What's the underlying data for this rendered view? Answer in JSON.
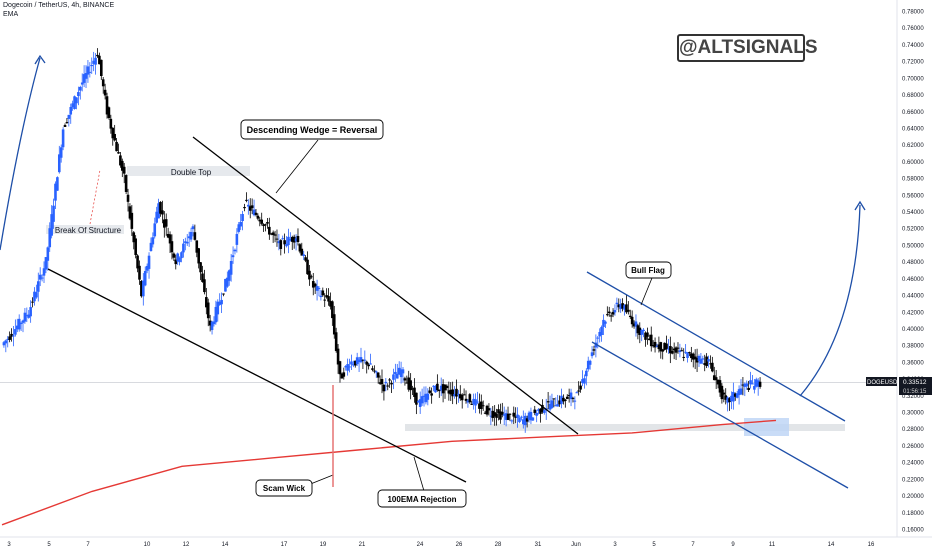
{
  "header": {
    "title": "Dogecoin / TetherUS, 4h, BINANCE",
    "indicator": "EMA"
  },
  "brand": "@ALTSIGNALS",
  "annotations": {
    "descending_wedge": "Descending Wedge = Reversal",
    "double_top": "Double Top",
    "break_of_structure": "Break Of Structure",
    "bull_flag": "Bull Flag",
    "scam_wick": "Scam Wick",
    "ema_rejection": "100EMA Rejection"
  },
  "price_tag": {
    "symbol": "DOGEUSDT",
    "price": "0.33512",
    "countdown": "01:56:15"
  },
  "colors": {
    "bull": "#2962ff",
    "bear": "#000000",
    "ema": "#e53935",
    "channel": "#1e4fa8",
    "wedge": "#000000"
  },
  "chart_data": {
    "type": "candlestick",
    "symbol": "DOGEUSDT",
    "exchange": "BINANCE",
    "timeframe": "4h",
    "y_axis": {
      "range": [
        0.15,
        0.79
      ],
      "ticks": [
        "0.78000",
        "0.76000",
        "0.74000",
        "0.72000",
        "0.70000",
        "0.68000",
        "0.66000",
        "0.64000",
        "0.62000",
        "0.60000",
        "0.58000",
        "0.56000",
        "0.54000",
        "0.52000",
        "0.50000",
        "0.48000",
        "0.46000",
        "0.44000",
        "0.42000",
        "0.40000",
        "0.38000",
        "0.36000",
        "0.34000",
        "0.32000",
        "0.30000",
        "0.28000",
        "0.26000",
        "0.24000",
        "0.22000",
        "0.20000",
        "0.18000",
        "0.16000"
      ]
    },
    "x_axis": {
      "ticks": [
        "3",
        "5",
        "7",
        "10",
        "12",
        "14",
        "17",
        "19",
        "21",
        "24",
        "26",
        "28",
        "31",
        "Jun",
        "3",
        "5",
        "7",
        "9",
        "11",
        "14",
        "16"
      ]
    },
    "price_path": [
      [
        0,
        0.38
      ],
      [
        3,
        0.42
      ],
      [
        5,
        0.48
      ],
      [
        7,
        0.64
      ],
      [
        9,
        0.69
      ],
      [
        11,
        0.73
      ],
      [
        12,
        0.66
      ],
      [
        14,
        0.58
      ],
      [
        16,
        0.44
      ],
      [
        18,
        0.55
      ],
      [
        20,
        0.48
      ],
      [
        22,
        0.52
      ],
      [
        24,
        0.4
      ],
      [
        26,
        0.46
      ],
      [
        28,
        0.55
      ],
      [
        30,
        0.53
      ],
      [
        32,
        0.5
      ],
      [
        34,
        0.51
      ],
      [
        36,
        0.45
      ],
      [
        38,
        0.43
      ],
      [
        39,
        0.34
      ],
      [
        40,
        0.36
      ],
      [
        42,
        0.36
      ],
      [
        44,
        0.33
      ],
      [
        46,
        0.35
      ],
      [
        48,
        0.31
      ],
      [
        50,
        0.33
      ],
      [
        53,
        0.32
      ],
      [
        56,
        0.3
      ],
      [
        60,
        0.29
      ],
      [
        63,
        0.31
      ],
      [
        66,
        0.32
      ],
      [
        69,
        0.41
      ],
      [
        71,
        0.43
      ],
      [
        73,
        0.4
      ],
      [
        75,
        0.38
      ],
      [
        78,
        0.37
      ],
      [
        81,
        0.36
      ],
      [
        83,
        0.31
      ],
      [
        85,
        0.33
      ],
      [
        87,
        0.335
      ]
    ],
    "ema100": [
      [
        0,
        0.165
      ],
      [
        10,
        0.205
      ],
      [
        20,
        0.235
      ],
      [
        30,
        0.245
      ],
      [
        40,
        0.255
      ],
      [
        50,
        0.265
      ],
      [
        60,
        0.27
      ],
      [
        70,
        0.275
      ],
      [
        80,
        0.285
      ],
      [
        86,
        0.29
      ]
    ],
    "last_price": 0.33512
  }
}
